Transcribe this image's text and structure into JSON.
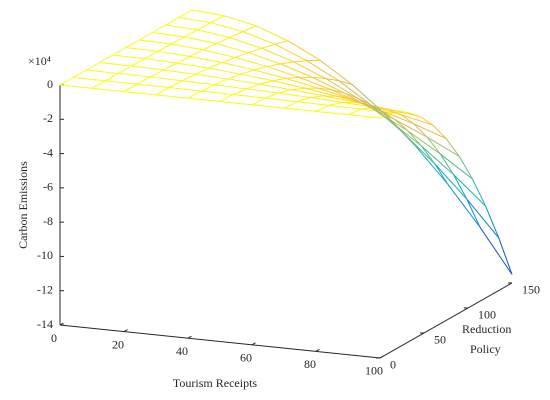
{
  "chart_data": {
    "type": "mesh",
    "xlabel": "Tourism Receipts",
    "ylabel": [
      "Reduction",
      "Policy"
    ],
    "zlabel": "Carbon Emissions",
    "zscale_label": "×10⁴",
    "x": [
      0,
      10,
      20,
      30,
      40,
      50,
      60,
      70,
      80,
      90,
      100
    ],
    "y": [
      0,
      15,
      30,
      45,
      60,
      75,
      90,
      105,
      120,
      135,
      150
    ],
    "z": [
      [
        0,
        0,
        0,
        0,
        0,
        0,
        0,
        0,
        0,
        0,
        0
      ],
      [
        0,
        0,
        -0.01,
        -0.01,
        -0.02,
        -0.03,
        -0.05,
        -0.07,
        -0.09,
        -0.11,
        -0.14
      ],
      [
        0,
        -0.01,
        -0.02,
        -0.05,
        -0.09,
        -0.14,
        -0.19,
        -0.26,
        -0.35,
        -0.44,
        -0.54
      ],
      [
        0,
        -0.01,
        -0.05,
        -0.11,
        -0.19,
        -0.3,
        -0.44,
        -0.6,
        -0.78,
        -0.98,
        -1.22
      ],
      [
        0,
        -0.02,
        -0.09,
        -0.19,
        -0.35,
        -0.54,
        -0.78,
        -1.06,
        -1.38,
        -1.75,
        -2.16
      ],
      [
        0,
        -0.03,
        -0.14,
        -0.3,
        -0.54,
        -0.84,
        -1.22,
        -1.65,
        -2.16,
        -2.73,
        -3.38
      ],
      [
        0,
        -0.05,
        -0.19,
        -0.44,
        -0.78,
        -1.22,
        -1.75,
        -2.38,
        -3.11,
        -3.94,
        -4.86
      ],
      [
        0,
        -0.07,
        -0.26,
        -0.6,
        -1.06,
        -1.65,
        -2.38,
        -3.24,
        -4.23,
        -5.36,
        -6.62
      ],
      [
        0,
        -0.09,
        -0.35,
        -0.78,
        -1.38,
        -2.16,
        -3.11,
        -4.23,
        -5.53,
        -7.0,
        -8.64
      ],
      [
        0,
        -0.11,
        -0.44,
        -0.98,
        -1.75,
        -2.73,
        -3.94,
        -5.36,
        -7.0,
        -8.86,
        -10.94
      ],
      [
        0,
        -0.14,
        -0.54,
        -1.22,
        -2.16,
        -3.38,
        -4.86,
        -6.62,
        -8.64,
        -10.94,
        -13.5
      ]
    ],
    "colormap": [
      "#352a87",
      "#0f5cdd",
      "#1481d6",
      "#06a4ca",
      "#2eb7a4",
      "#87bf77",
      "#d1bb59",
      "#fec832",
      "#f9fb0e"
    ],
    "xlim": [
      0,
      100
    ],
    "xticks": [
      0,
      20,
      40,
      60,
      80,
      100
    ],
    "ylim": [
      0,
      150
    ],
    "yticks": [
      0,
      50,
      100,
      150
    ],
    "zlim": [
      -14,
      0
    ],
    "zticks": [
      -14,
      -12,
      -10,
      -8,
      -6,
      -4,
      -2,
      0
    ]
  }
}
